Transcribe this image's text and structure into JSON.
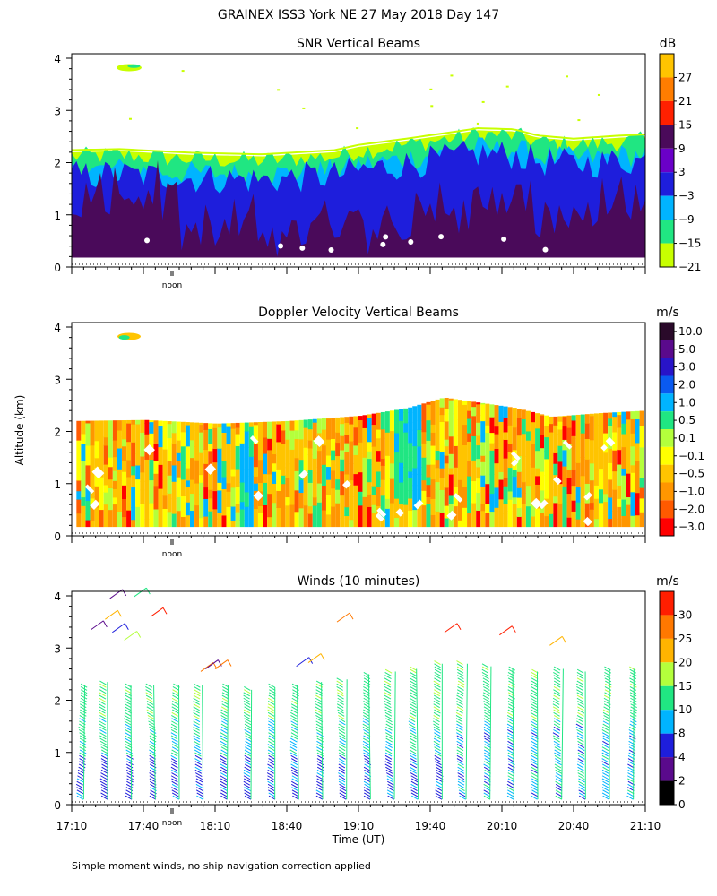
{
  "figure": {
    "title": "GRAINEX ISS3 York NE  27 May 2018 Day 147",
    "y_axis_label": "Altitude (km)",
    "x_axis_label": "Time (UT)",
    "noon_label": "noon",
    "footnote": "Simple moment winds, no ship navigation correction applied"
  },
  "chart_data": [
    {
      "type": "heatmap",
      "title": "SNR Vertical Beams",
      "units": "dB",
      "x_unit": "minutes UT",
      "x_range": [
        1030,
        1270
      ],
      "xtick_values": [
        1030,
        1060,
        1090,
        1120,
        1150,
        1180,
        1210,
        1240,
        1270
      ],
      "ylim": [
        0,
        4
      ],
      "yticks": [
        "0",
        "1",
        "2",
        "3",
        "4"
      ],
      "colorbar_labels": [
        "27",
        "21",
        "15",
        "9",
        "3",
        "−3",
        "−9",
        "−15",
        "−21"
      ],
      "colors": [
        "#ffc400",
        "#ff7d00",
        "#ff2000",
        "#4a0a5a",
        "#6a00c8",
        "#1e1edc",
        "#00b4ff",
        "#20e682",
        "#c8ff00"
      ],
      "data_top_km": [
        [
          1030,
          2.2
        ],
        [
          1050,
          2.22
        ],
        [
          1080,
          2.15
        ],
        [
          1110,
          2.12
        ],
        [
          1140,
          2.2
        ],
        [
          1150,
          2.3
        ],
        [
          1170,
          2.42
        ],
        [
          1190,
          2.55
        ],
        [
          1200,
          2.62
        ],
        [
          1215,
          2.6
        ],
        [
          1225,
          2.48
        ],
        [
          1240,
          2.42
        ],
        [
          1260,
          2.48
        ],
        [
          1270,
          2.5
        ]
      ],
      "bands": [
        {
          "level": -21,
          "color": "#c8ff00",
          "top_offset_km": 0.0
        },
        {
          "level": -15,
          "color": "#20e682",
          "top_offset_km": -0.08
        },
        {
          "level": -9,
          "color": "#00b4ff",
          "top_offset_km": -0.35
        },
        {
          "level": -3,
          "color": "#1e1edc",
          "top_offset_km": -0.45
        },
        {
          "level": 3,
          "color": "#4a0a5a",
          "top_offset_km": -0.75
        }
      ]
    },
    {
      "type": "heatmap",
      "title": "Doppler Velocity Vertical Beams",
      "units": "m/s",
      "x_unit": "minutes UT",
      "x_range": [
        1030,
        1270
      ],
      "xtick_values": [
        1030,
        1060,
        1090,
        1120,
        1150,
        1180,
        1210,
        1240,
        1270
      ],
      "ylim": [
        0,
        4
      ],
      "yticks": [
        "0",
        "1",
        "2",
        "3",
        "4"
      ],
      "colorbar_labels": [
        "10.0",
        "5.0",
        "3.0",
        "2.0",
        "1.0",
        "0.5",
        "0.1",
        "−0.1",
        "−0.5",
        "−1.0",
        "−2.0",
        "−3.0"
      ],
      "colors": [
        "#2a0a2a",
        "#5a0a8c",
        "#2814c8",
        "#0a5af0",
        "#00b4ff",
        "#20e682",
        "#b4ff3c",
        "#ffff00",
        "#ffc400",
        "#ff9600",
        "#ff5a00",
        "#ff0000"
      ],
      "data_top_km": [
        [
          1030,
          2.2
        ],
        [
          1060,
          2.22
        ],
        [
          1090,
          2.15
        ],
        [
          1120,
          2.2
        ],
        [
          1150,
          2.3
        ],
        [
          1170,
          2.45
        ],
        [
          1185,
          2.65
        ],
        [
          1200,
          2.55
        ],
        [
          1215,
          2.45
        ],
        [
          1230,
          2.28
        ],
        [
          1250,
          2.35
        ],
        [
          1270,
          2.4
        ]
      ]
    },
    {
      "type": "scatter",
      "title": "Winds (10 minutes)",
      "units": "m/s",
      "x_unit": "minutes UT",
      "x_range": [
        1030,
        1270
      ],
      "xticks": [
        "17:10",
        "17:40",
        "18:10",
        "18:40",
        "19:10",
        "19:40",
        "20:10",
        "20:40",
        "21:10"
      ],
      "xtick_values": [
        1030,
        1060,
        1090,
        1120,
        1150,
        1180,
        1210,
        1240,
        1270
      ],
      "ylim": [
        0,
        4
      ],
      "yticks": [
        "0",
        "1",
        "2",
        "3",
        "4"
      ],
      "colorbar_labels": [
        "30",
        "25",
        "20",
        "15",
        "10",
        "8",
        "4",
        "2",
        "0"
      ],
      "colors": [
        "#ff1e00",
        "#ff7800",
        "#ffb400",
        "#b4ff3c",
        "#20e682",
        "#00b4ff",
        "#1e1edc",
        "#5a0a8c",
        "#000000"
      ],
      "profile_times": [
        1035,
        1045,
        1055,
        1065,
        1075,
        1085,
        1095,
        1105,
        1115,
        1125,
        1135,
        1145,
        1155,
        1165,
        1175,
        1185,
        1195,
        1205,
        1215,
        1225,
        1235,
        1245,
        1255,
        1265
      ],
      "profile_tops_km": [
        2.3,
        2.35,
        2.3,
        2.3,
        2.3,
        2.3,
        2.3,
        2.2,
        2.25,
        2.3,
        2.35,
        2.4,
        2.5,
        2.55,
        2.6,
        2.7,
        2.7,
        2.65,
        2.6,
        2.55,
        2.6,
        2.55,
        2.6,
        2.6
      ]
    }
  ]
}
